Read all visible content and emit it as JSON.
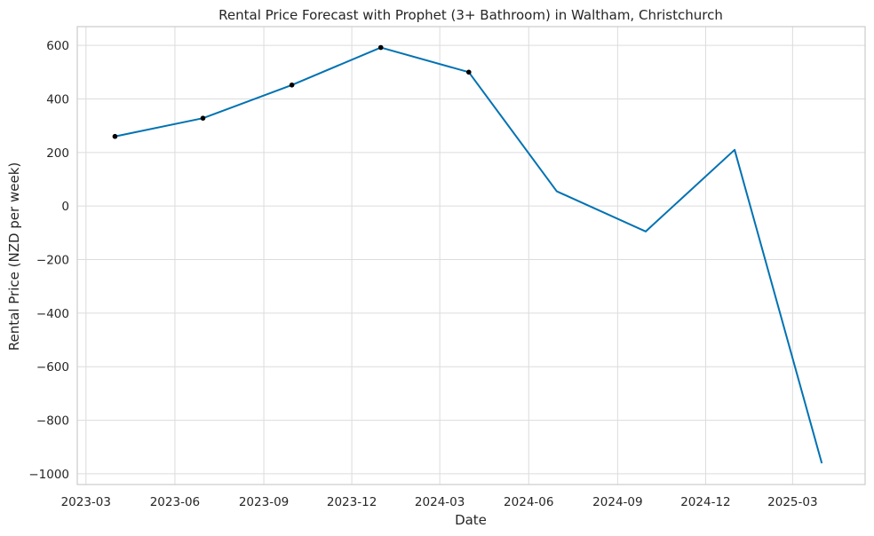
{
  "chart_data": {
    "type": "line",
    "title": "Rental Price Forecast with Prophet (3+ Bathroom) in Waltham, Christchurch",
    "xlabel": "Date",
    "ylabel": "Rental Price (NZD per week)",
    "x_ticks": [
      "2023-03",
      "2023-06",
      "2023-09",
      "2023-12",
      "2024-03",
      "2024-06",
      "2024-09",
      "2024-12",
      "2025-03"
    ],
    "y_ticks": [
      -1000,
      -800,
      -600,
      -400,
      -200,
      0,
      200,
      400,
      600
    ],
    "xlim": [
      "2023-02-20",
      "2025-05-15"
    ],
    "ylim": [
      -1040,
      670
    ],
    "grid": true,
    "series": [
      {
        "color": "#0072B2",
        "x": [
          "2023-03-31",
          "2023-06-30",
          "2023-09-30",
          "2023-12-31",
          "2024-03-31",
          "2024-06-30",
          "2024-09-30",
          "2024-12-31",
          "2025-03-31"
        ],
        "y": [
          260,
          328,
          452,
          592,
          500,
          55,
          -95,
          210,
          -958
        ]
      }
    ],
    "observed_points": {
      "color": "#000000",
      "x": [
        "2023-03-31",
        "2023-06-30",
        "2023-09-30",
        "2023-12-31",
        "2024-03-31"
      ],
      "y": [
        260,
        328,
        452,
        592,
        500
      ]
    }
  }
}
